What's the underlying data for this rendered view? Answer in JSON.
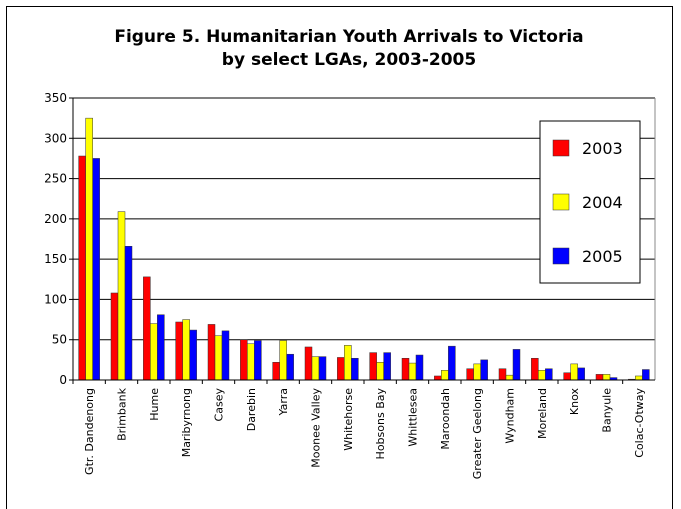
{
  "chart_data": {
    "type": "bar",
    "title_line1": "Figure 5. Humanitarian Youth Arrivals to Victoria",
    "title_line2": "by select LGAs, 2003-2005",
    "xlabel": "",
    "ylabel": "",
    "ylim": [
      0,
      350
    ],
    "yticks": [
      "0",
      "50",
      "100",
      "150",
      "200",
      "250",
      "300",
      "350"
    ],
    "grid": true,
    "legend_position": "top-right",
    "categories": [
      "Gtr. Dandenong",
      "Brimbank",
      "Hume",
      "Maribyrnong",
      "Casey",
      "Darebin",
      "Yarra",
      "Moonee Valley",
      "Whitehorse",
      "Hobsons Bay",
      "Whittlesea",
      "Maroondah",
      "Greater Geelong",
      "Wyndham",
      "Moreland",
      "Knox",
      "Banyule",
      "Colac-Otway"
    ],
    "series": [
      {
        "name": "2003",
        "color": "#ff0000",
        "values": [
          278,
          108,
          128,
          72,
          69,
          50,
          22,
          41,
          28,
          34,
          27,
          5,
          14,
          14,
          27,
          9,
          7,
          1
        ]
      },
      {
        "name": "2004",
        "color": "#ffff00",
        "values": [
          325,
          209,
          70,
          75,
          55,
          45,
          49,
          29,
          43,
          22,
          21,
          12,
          20,
          6,
          12,
          20,
          7,
          5
        ]
      },
      {
        "name": "2005",
        "color": "#0000ff",
        "values": [
          275,
          166,
          81,
          62,
          61,
          49,
          32,
          29,
          27,
          34,
          31,
          42,
          25,
          38,
          14,
          15,
          3,
          13
        ]
      }
    ]
  }
}
